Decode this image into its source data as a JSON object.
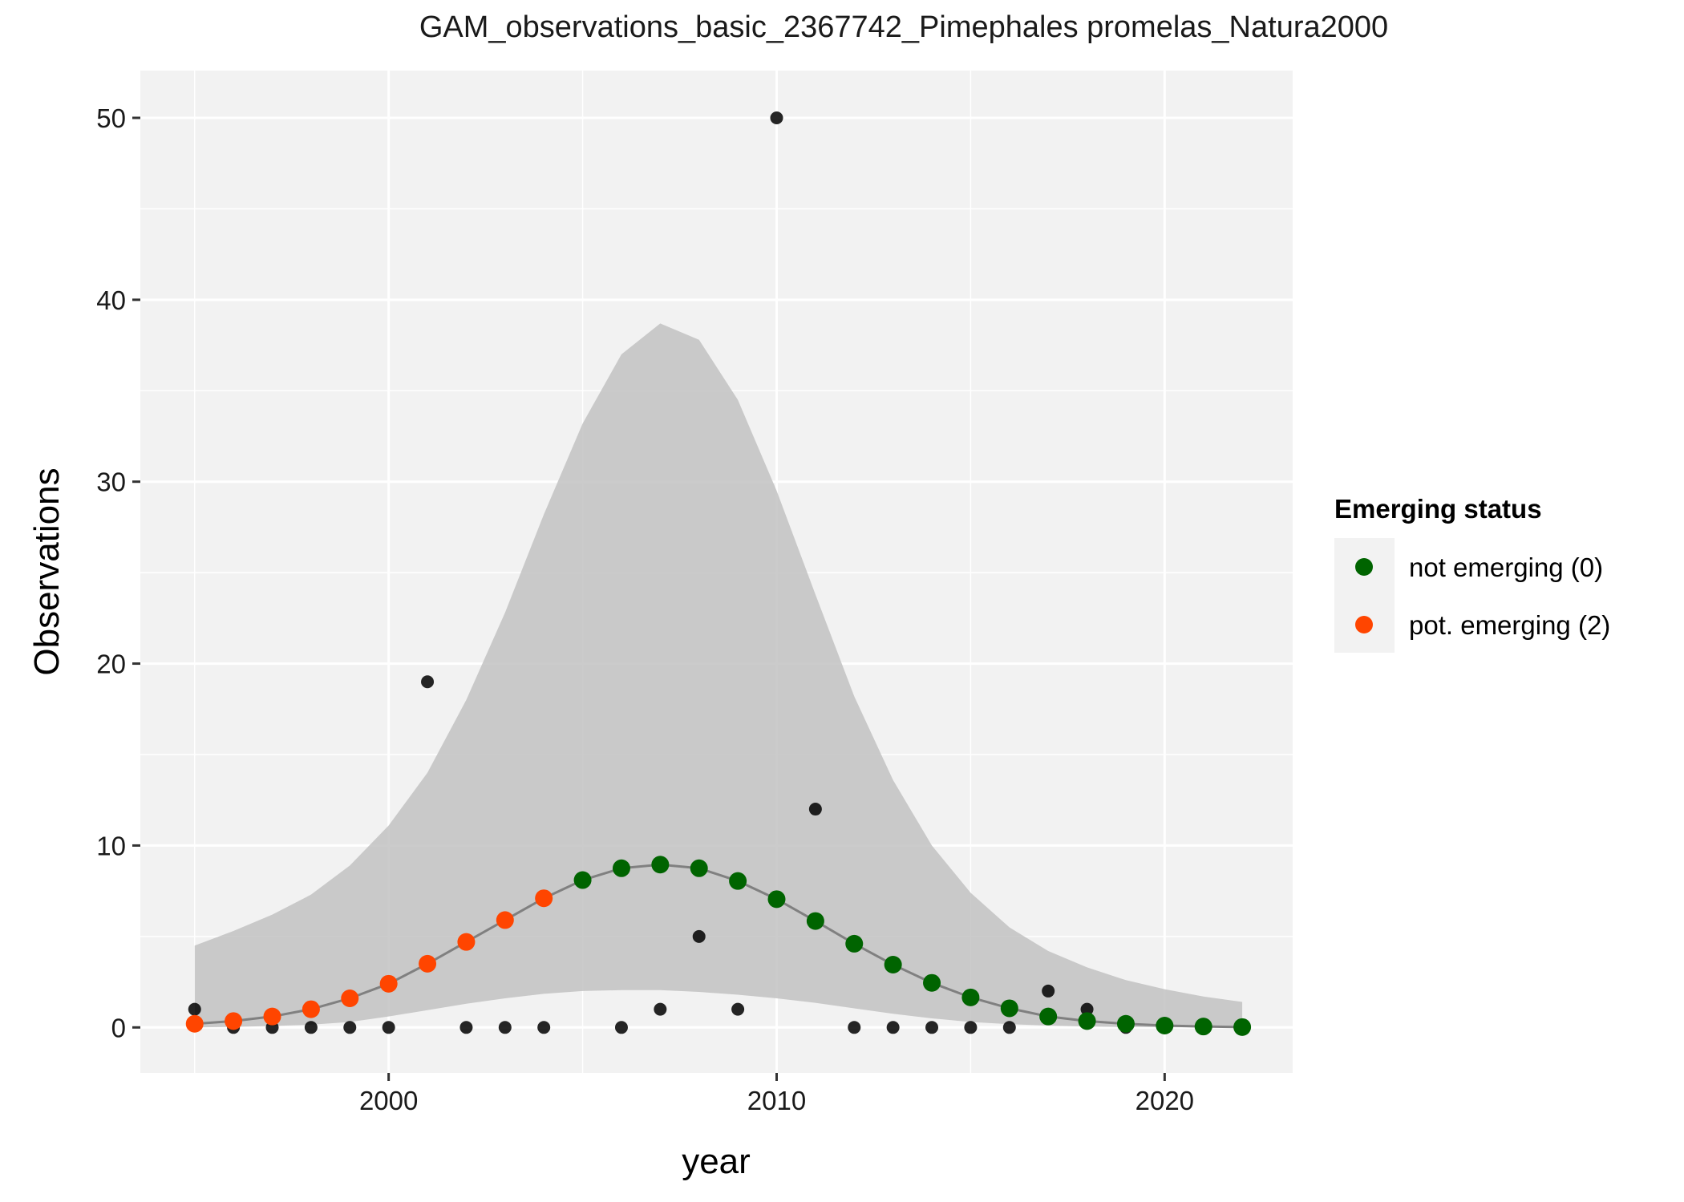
{
  "chart_data": {
    "type": "scatter",
    "title": "GAM_observations_basic_2367742_Pimephales promelas_Natura2000",
    "xlabel": "year",
    "ylabel": "Observations",
    "xlim": [
      1993.6,
      2023.3
    ],
    "ylim": [
      -2.5,
      52.6
    ],
    "x_ticks": [
      2000,
      2010,
      2020
    ],
    "y_ticks": [
      0,
      10,
      20,
      30,
      40,
      50
    ],
    "grid": true,
    "legend_position": "right",
    "legend": {
      "title": "Emerging status",
      "entries": [
        {
          "label": "not emerging (0)",
          "color": "#006400"
        },
        {
          "label": "pot. emerging (2)",
          "color": "#FF4500"
        }
      ]
    },
    "colors": {
      "panel_background": "#F2F2F2",
      "grid": "#FFFFFF",
      "ribbon": "#BEBEBE",
      "fit_line": "#808080",
      "observed": "#000000"
    },
    "observed": {
      "x": [
        1995,
        1996,
        1997,
        1998,
        1999,
        2000,
        2001,
        2002,
        2003,
        2004,
        2006,
        2007,
        2008,
        2009,
        2010,
        2011,
        2012,
        2013,
        2014,
        2015,
        2016,
        2017,
        2018,
        2019
      ],
      "y": [
        1,
        0,
        0,
        0,
        0,
        0,
        19,
        0,
        0,
        0,
        0,
        1,
        5,
        1,
        50,
        12,
        0,
        0,
        0,
        0,
        0,
        2,
        1,
        0
      ]
    },
    "fit": {
      "x": [
        1995,
        1996,
        1997,
        1998,
        1999,
        2000,
        2001,
        2002,
        2003,
        2004,
        2005,
        2006,
        2007,
        2008,
        2009,
        2010,
        2011,
        2012,
        2013,
        2014,
        2015,
        2016,
        2017,
        2018,
        2019,
        2020,
        2021,
        2022
      ],
      "y": [
        0.2,
        0.35,
        0.6,
        1.0,
        1.6,
        2.4,
        3.5,
        4.7,
        5.9,
        7.1,
        8.1,
        8.75,
        8.95,
        8.75,
        8.05,
        7.05,
        5.85,
        4.6,
        3.45,
        2.45,
        1.65,
        1.05,
        0.6,
        0.35,
        0.2,
        0.1,
        0.05,
        0.02
      ],
      "status": [
        "pot. emerging (2)",
        "pot. emerging (2)",
        "pot. emerging (2)",
        "pot. emerging (2)",
        "pot. emerging (2)",
        "pot. emerging (2)",
        "pot. emerging (2)",
        "pot. emerging (2)",
        "pot. emerging (2)",
        "pot. emerging (2)",
        "not emerging (0)",
        "not emerging (0)",
        "not emerging (0)",
        "not emerging (0)",
        "not emerging (0)",
        "not emerging (0)",
        "not emerging (0)",
        "not emerging (0)",
        "not emerging (0)",
        "not emerging (0)",
        "not emerging (0)",
        "not emerging (0)",
        "not emerging (0)",
        "not emerging (0)",
        "not emerging (0)",
        "not emerging (0)",
        "not emerging (0)",
        "not emerging (0)"
      ],
      "lower": [
        0.0,
        0.03,
        0.08,
        0.15,
        0.3,
        0.6,
        0.95,
        1.3,
        1.6,
        1.85,
        2.0,
        2.05,
        2.05,
        1.95,
        1.8,
        1.6,
        1.35,
        1.05,
        0.75,
        0.5,
        0.3,
        0.18,
        0.1,
        0.05,
        0.02,
        0.01,
        0.0,
        0.0
      ],
      "upper": [
        4.5,
        5.3,
        6.2,
        7.3,
        8.9,
        11.1,
        14.0,
        18.0,
        22.8,
        28.2,
        33.2,
        37.0,
        38.7,
        37.8,
        34.5,
        29.5,
        23.8,
        18.2,
        13.6,
        10.0,
        7.4,
        5.5,
        4.2,
        3.3,
        2.6,
        2.1,
        1.7,
        1.4
      ]
    }
  }
}
